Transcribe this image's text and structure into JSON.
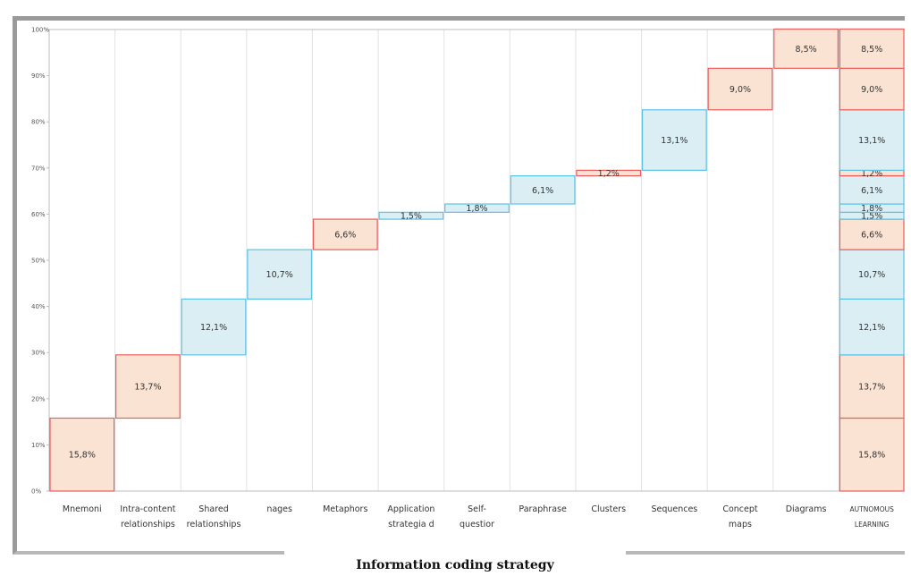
{
  "chart_data": {
    "type": "waterfall",
    "xlabel": "Information coding strategy",
    "ylim": [
      0,
      100
    ],
    "yticks": [
      "0%",
      "10%",
      "20%",
      "30%",
      "40%",
      "50%",
      "60%",
      "70%",
      "80%",
      "90%",
      "100%"
    ],
    "categories": [
      {
        "label": [
          "Mnemoni"
        ],
        "value": 15.8,
        "display": "15,8%",
        "color": "red"
      },
      {
        "label": [
          "Intra-content",
          "relationships"
        ],
        "value": 13.7,
        "display": "13,7%",
        "color": "red"
      },
      {
        "label": [
          "Shared",
          "relationships"
        ],
        "value": 12.1,
        "display": "12,1%",
        "color": "blue"
      },
      {
        "label": [
          "nages"
        ],
        "value": 10.7,
        "display": "10,7%",
        "color": "blue"
      },
      {
        "label": [
          "Metaphors"
        ],
        "value": 6.6,
        "display": "6,6%",
        "color": "red"
      },
      {
        "label": [
          "Application",
          "strategia d"
        ],
        "value": 1.5,
        "display": "1,5%",
        "color": "blue"
      },
      {
        "label": [
          "Self-",
          "questior"
        ],
        "value": 1.8,
        "display": "1,8%",
        "color": "blue"
      },
      {
        "label": [
          "Paraphrase"
        ],
        "value": 6.1,
        "display": "6,1%",
        "color": "blue"
      },
      {
        "label": [
          "Clusters"
        ],
        "value": 1.2,
        "display": "1,2%",
        "color": "red"
      },
      {
        "label": [
          "Sequences"
        ],
        "value": 13.1,
        "display": "13,1%",
        "color": "blue"
      },
      {
        "label": [
          "Concept",
          "maps"
        ],
        "value": 9.0,
        "display": "9,0%",
        "color": "red"
      },
      {
        "label": [
          "Diagrams"
        ],
        "value": 8.5,
        "display": "8,5%",
        "color": "red"
      }
    ],
    "total": {
      "label": [
        "AUTNOMOUS",
        "LEARNING"
      ]
    },
    "colors": {
      "red_fill": "#fbe3d4",
      "red_stroke": "#ee5b5b",
      "blue_fill": "#dbeef4",
      "blue_stroke": "#5bc3e6",
      "grid": "#e2e2e2",
      "axis": "#bdbdbd"
    }
  }
}
